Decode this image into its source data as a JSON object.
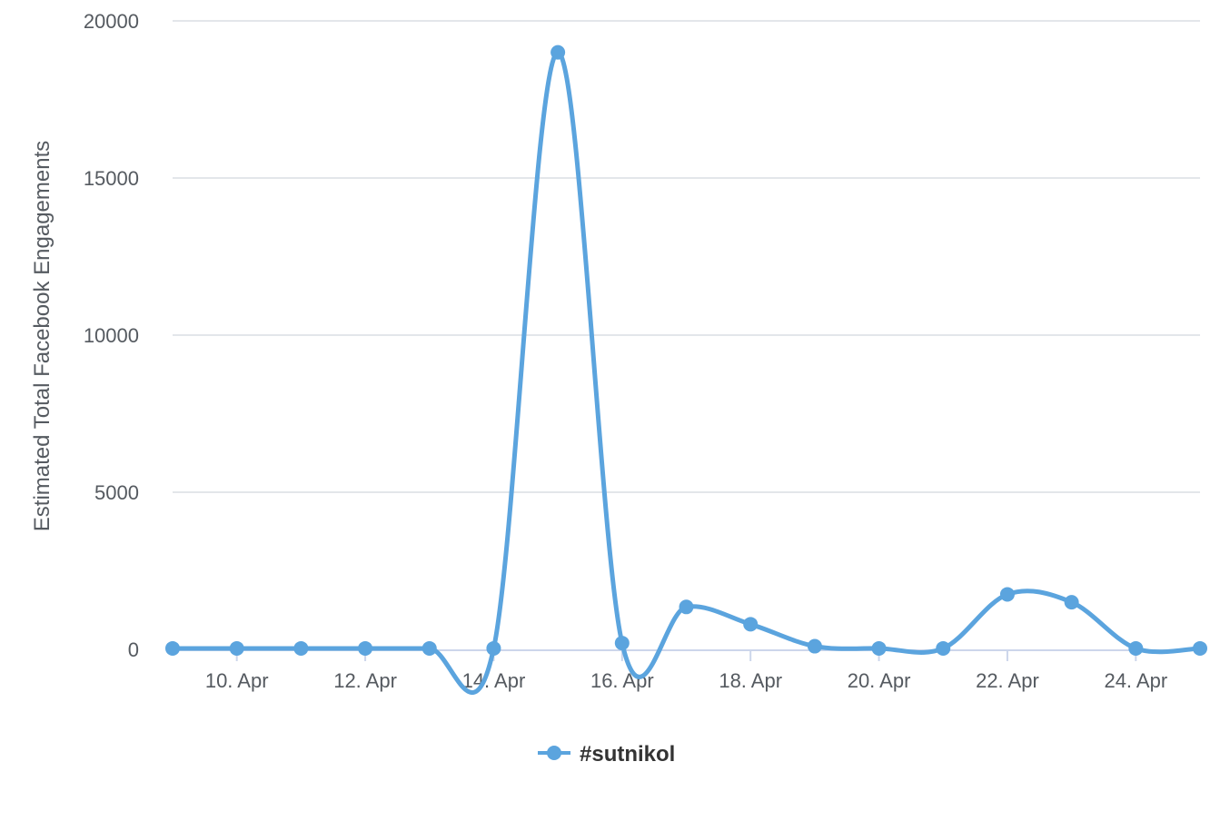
{
  "chart_data": {
    "type": "line",
    "title": "",
    "xlabel": "",
    "ylabel": "Estimated Total Facebook Engagements",
    "x_tick_labels": [
      "10. Apr",
      "12. Apr",
      "14. Apr",
      "16. Apr",
      "18. Apr",
      "20. Apr",
      "22. Apr",
      "24. Apr"
    ],
    "x_tick_days": [
      10,
      12,
      14,
      16,
      18,
      20,
      22,
      24
    ],
    "x_range_days": [
      9,
      25
    ],
    "y_ticks": [
      0,
      5000,
      10000,
      15000,
      20000
    ],
    "y_tick_labels": [
      "0",
      "5000",
      "10000",
      "15000",
      "20000"
    ],
    "ylim": [
      0,
      20000
    ],
    "grid": "horizontal",
    "legend_position": "bottom-center",
    "series": [
      {
        "name": "#sutnikol",
        "color": "#5ba4de",
        "marker": "circle",
        "smooth": true,
        "x": [
          "9 Apr",
          "10 Apr",
          "11 Apr",
          "12 Apr",
          "13 Apr",
          "14 Apr",
          "15 Apr",
          "16 Apr",
          "17 Apr",
          "18 Apr",
          "19 Apr",
          "20 Apr",
          "21 Apr",
          "22 Apr",
          "23 Apr",
          "24 Apr",
          "25 Apr"
        ],
        "values": [
          30,
          30,
          30,
          30,
          30,
          30,
          19000,
          200,
          1350,
          800,
          100,
          30,
          30,
          1750,
          1500,
          30,
          30
        ]
      }
    ]
  }
}
